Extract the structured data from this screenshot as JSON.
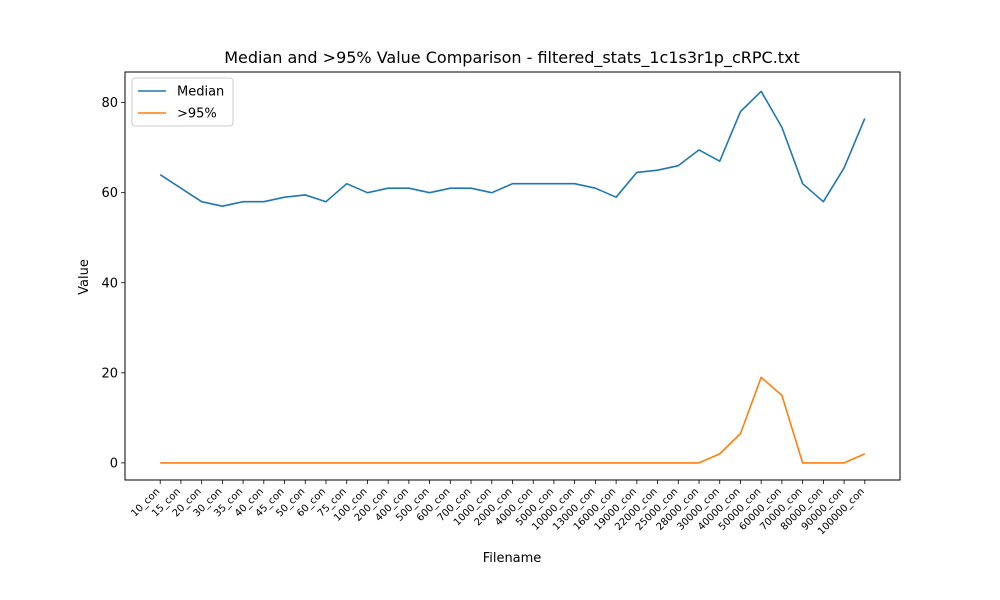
{
  "chart_data": {
    "type": "line",
    "title": "Median and >95% Value Comparison - filtered_stats_1c1s3r1p_cRPC.txt",
    "xlabel": "Filename",
    "ylabel": "Value",
    "categories": [
      "10_con",
      "15_con",
      "20_con",
      "30_con",
      "35_con",
      "40_con",
      "45_con",
      "50_con",
      "60_con",
      "75_con",
      "100_con",
      "200_con",
      "400_con",
      "500_con",
      "600_con",
      "700_con",
      "1000_con",
      "2000_con",
      "4000_con",
      "5000_con",
      "10000_con",
      "13000_con",
      "16000_con",
      "19000_con",
      "22000_con",
      "25000_con",
      "28000_con",
      "30000_con",
      "40000_con",
      "50000_con",
      "60000_con",
      "70000_con",
      "80000_con",
      "90000_con",
      "100000_con"
    ],
    "yticks": [
      0,
      20,
      40,
      60,
      80
    ],
    "ylim": [
      -3.8,
      86.8
    ],
    "grid": false,
    "legend_position": "upper-left",
    "series": [
      {
        "name": "Median",
        "color": "#1f77b4",
        "values": [
          64,
          61,
          58,
          57,
          58,
          58,
          59,
          59.5,
          58,
          62,
          60,
          61,
          61,
          60,
          61,
          61,
          60,
          62,
          62,
          62,
          62,
          61,
          59,
          64.5,
          65,
          66,
          69.5,
          67,
          78,
          82.5,
          74.5,
          62,
          58,
          65.5,
          76.5
        ]
      },
      {
        "name": ">95%",
        "color": "#ff7f0e",
        "values": [
          0,
          0,
          0,
          0,
          0,
          0,
          0,
          0,
          0,
          0,
          0,
          0,
          0,
          0,
          0,
          0,
          0,
          0,
          0,
          0,
          0,
          0,
          0,
          0,
          0,
          0,
          0,
          2,
          6.5,
          19,
          15,
          0,
          0,
          0,
          2
        ]
      }
    ]
  }
}
